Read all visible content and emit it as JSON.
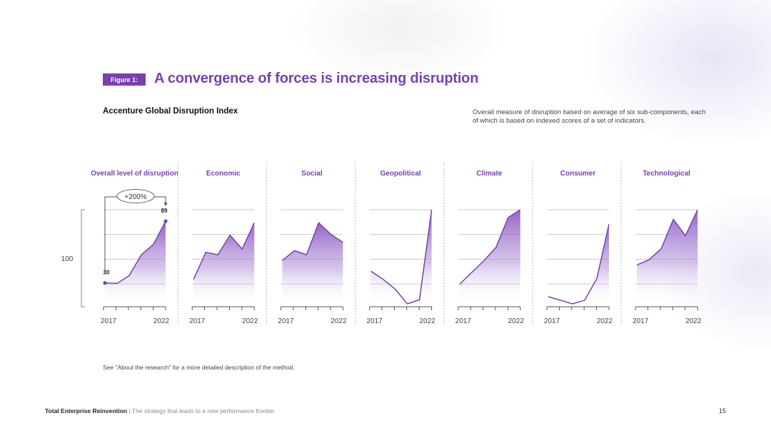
{
  "figure": {
    "badge": "Figure 1:",
    "title": "A convergence of forces is increasing disruption"
  },
  "index_title": "Accenture Global Disruption Index",
  "description": "Overall measure of disruption based on average of six sub-components, each of which is based on indexed scores of a set of indicators.",
  "note": "See \"About the research\" for a more detailed description of the method.",
  "footer": {
    "brand": "Total Enterprise Reinvention",
    "separator": " | ",
    "tagline": "The strategy that leads to a new performance frontier",
    "page": "15"
  },
  "colors": {
    "accent": "#7b3fb0",
    "fill_top": "#8e5cc4",
    "grid": "#c8c8c8"
  },
  "chart_data": [
    {
      "type": "area",
      "title": "Overall level of disruption",
      "x": [
        2017,
        2018,
        2019,
        2020,
        2021,
        2022
      ],
      "x_tick_labels": [
        "2017",
        "2022"
      ],
      "values": [
        30,
        29.5,
        37,
        57,
        67,
        89
      ],
      "y_ref_label": "100",
      "point_labels": [
        {
          "x": 2017,
          "text": "30"
        },
        {
          "x": 2022,
          "text": "89"
        }
      ],
      "annotation": "+200%",
      "ylim": [
        10,
        100
      ]
    },
    {
      "type": "area",
      "title": "Economic",
      "x": [
        2017,
        2018,
        2019,
        2020,
        2021,
        2022
      ],
      "x_tick_labels": [
        "2017",
        "2022"
      ],
      "values": [
        30,
        63,
        60,
        84,
        67,
        99
      ],
      "ylim": [
        0,
        115
      ]
    },
    {
      "type": "area",
      "title": "Social",
      "x": [
        2017,
        2018,
        2019,
        2020,
        2021,
        2022
      ],
      "x_tick_labels": [
        "2017",
        "2022"
      ],
      "values": [
        53,
        65,
        60,
        99,
        85,
        75
      ],
      "ylim": [
        0,
        115
      ]
    },
    {
      "type": "area",
      "title": "Geopolitical",
      "x": [
        2017,
        2018,
        2019,
        2020,
        2021,
        2022
      ],
      "x_tick_labels": [
        "2017",
        "2022"
      ],
      "values": [
        40,
        30,
        18,
        0,
        5,
        115
      ],
      "ylim": [
        0,
        115
      ]
    },
    {
      "type": "area",
      "title": "Climate",
      "x": [
        2017,
        2018,
        2019,
        2020,
        2021,
        2022
      ],
      "x_tick_labels": [
        "2017",
        "2022"
      ],
      "values": [
        25,
        40,
        55,
        72,
        110,
        120
      ],
      "ylim": [
        0,
        120
      ]
    },
    {
      "type": "area",
      "title": "Consumer",
      "x": [
        2017,
        2018,
        2019,
        2020,
        2021,
        2022
      ],
      "x_tick_labels": [
        "2017",
        "2022"
      ],
      "values": [
        10,
        5,
        0,
        5,
        35,
        110
      ],
      "ylim": [
        0,
        130
      ]
    },
    {
      "type": "area",
      "title": "Technological",
      "x": [
        2017,
        2018,
        2019,
        2020,
        2021,
        2022
      ],
      "x_tick_labels": [
        "2017",
        "2022"
      ],
      "values": [
        60,
        68,
        85,
        130,
        105,
        145
      ],
      "ylim": [
        0,
        145
      ]
    }
  ]
}
